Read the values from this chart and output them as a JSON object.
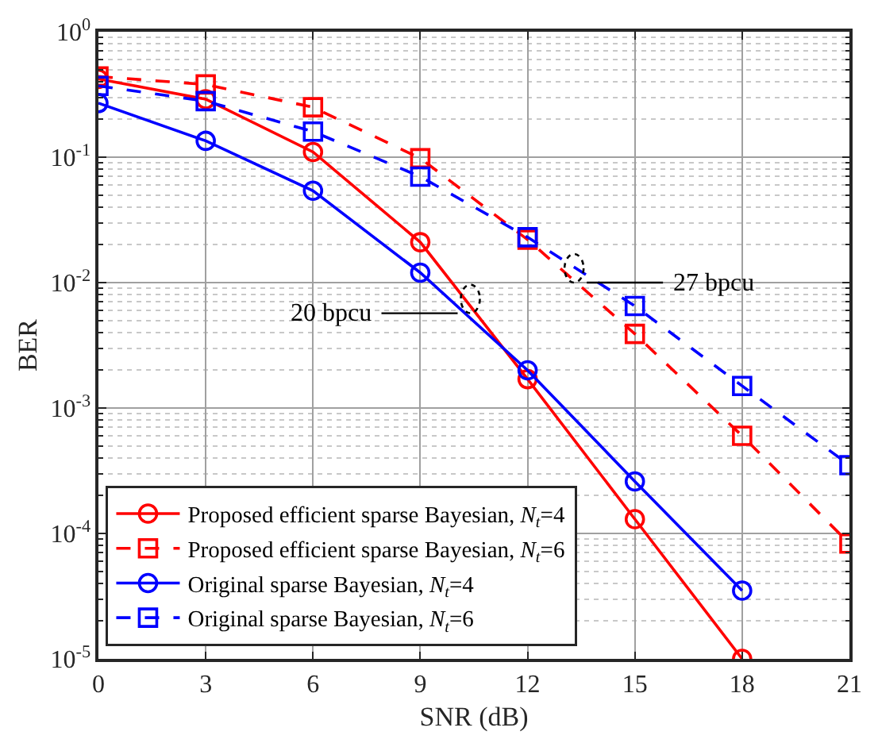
{
  "chart_data": {
    "type": "line",
    "xlabel": "SNR (dB)",
    "ylabel": "BER",
    "log": "y",
    "x": [
      0,
      3,
      6,
      9,
      12,
      15,
      18,
      21
    ],
    "series": [
      {
        "name": "Proposed efficient sparse Bayesian, N$_{t}$=4",
        "color": "#ff0000",
        "marker": "circle",
        "line_style": "solid",
        "values": [
          0.42,
          0.29,
          0.11,
          0.021,
          0.0017,
          0.00013,
          1e-05,
          null
        ]
      },
      {
        "name": "Proposed efficient sparse Bayesian, N$_{t}$=6",
        "color": "#ff0000",
        "marker": "square",
        "line_style": "dashed",
        "values": [
          0.44,
          0.38,
          0.25,
          0.098,
          0.022,
          0.0039,
          0.0006,
          8.3e-05
        ]
      },
      {
        "name": "Original sparse Bayesian, N$_{t}$=4",
        "color": "#0000ff",
        "marker": "circle",
        "line_style": "solid",
        "values": [
          0.27,
          0.135,
          0.054,
          0.012,
          0.002,
          0.00026,
          3.5e-05,
          null
        ]
      },
      {
        "name": "Original sparse Bayesian, N$_{t}$=6",
        "color": "#0000ff",
        "marker": "square",
        "line_style": "dashed",
        "values": [
          0.37,
          0.28,
          0.16,
          0.07,
          0.023,
          0.0065,
          0.0015,
          0.00035
        ]
      }
    ],
    "annotations": [
      {
        "text": "20 bpcu",
        "x": 10.4,
        "y": 0.0057
      },
      {
        "text": "27 bpcu",
        "x": 13.3,
        "y": 0.01
      }
    ],
    "xlim": [
      0,
      21
    ],
    "xticks": [
      0,
      3,
      6,
      9,
      12,
      15,
      18,
      21
    ],
    "ylim": [
      1e-05,
      1
    ],
    "yticks": [
      {
        "value": 1,
        "label": "10$^{0}$"
      },
      {
        "value": 0.1,
        "label": "10$^{-1}$"
      },
      {
        "value": 0.01,
        "label": "10$^{-2}$"
      },
      {
        "value": 0.001,
        "label": "10$^{-3}$"
      },
      {
        "value": 0.0001,
        "label": "10$^{-4}$"
      },
      {
        "value": 1e-05,
        "label": "10$^{-5}$"
      }
    ],
    "grid": true,
    "legend": "bottom left"
  }
}
